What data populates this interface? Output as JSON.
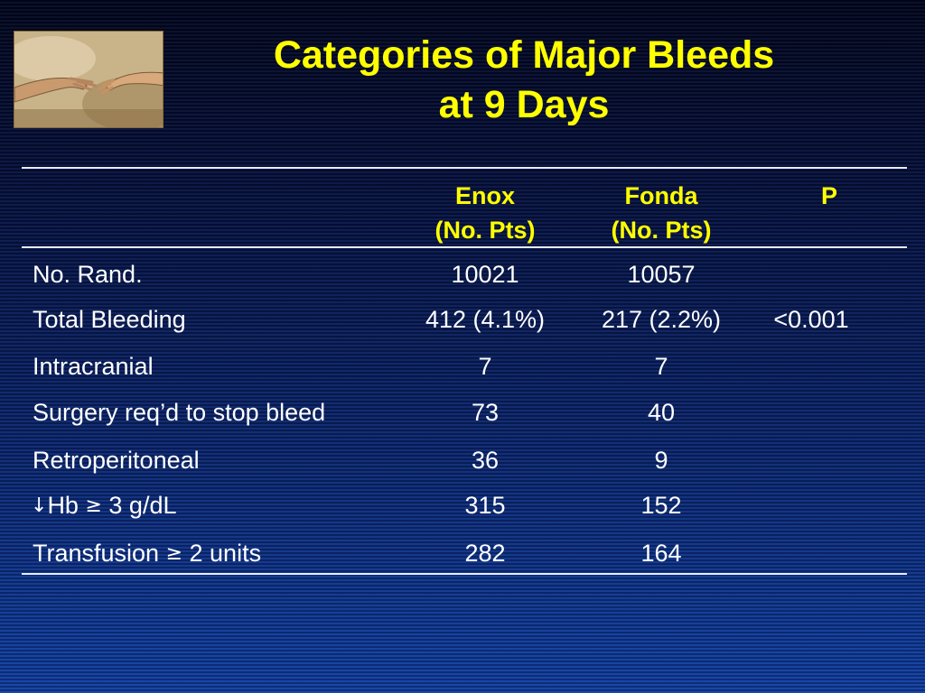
{
  "slide": {
    "title_line1": "Categories of Major Bleeds",
    "title_line2": "at 9 Days",
    "logo_icon": "creation-of-adam-hands-icon"
  },
  "table": {
    "headers": [
      {
        "line1": "Enox",
        "line2": "(No. Pts)"
      },
      {
        "line1": "Fonda",
        "line2": "(No. Pts)"
      },
      {
        "line1": "P",
        "line2": ""
      }
    ],
    "rows": [
      {
        "label": "No. Rand.",
        "enox": "10021",
        "fonda": "10057",
        "p": ""
      },
      {
        "label": "Total Bleeding",
        "enox": "412 (4.1%)",
        "fonda": "217 (2.2%)",
        "p": "<0.001"
      },
      {
        "label": "Intracranial",
        "enox": "7",
        "fonda": "7",
        "p": ""
      },
      {
        "label": "Surgery req’d to stop bleed",
        "enox": "73",
        "fonda": "40",
        "p": ""
      },
      {
        "label": "Retroperitoneal",
        "enox": "36",
        "fonda": "9",
        "p": ""
      },
      {
        "label_arrow": "↓",
        "label": "Hb ",
        "label_symbol": "≥",
        "label_rest": " 3 g/dL",
        "enox": "315",
        "fonda": "152",
        "p": ""
      },
      {
        "label": "Transfusion ",
        "label_symbol": "≥",
        "label_rest": " 2 units",
        "enox": "282",
        "fonda": "164",
        "p": ""
      }
    ]
  },
  "colors": {
    "title": "#ffff00",
    "header": "#ffff00",
    "body_text": "#ffffff",
    "rule": "#e8ecff"
  }
}
